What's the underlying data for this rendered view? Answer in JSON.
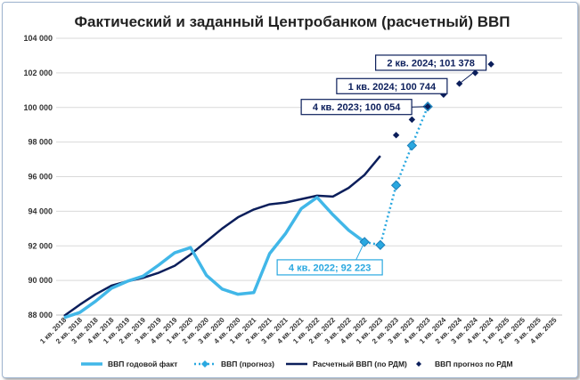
{
  "chart_data": {
    "type": "line",
    "title": "Фактический и заданный Центробанком (расчетный) ВВП",
    "xlabel": "",
    "ylabel": "",
    "ylim": [
      88000,
      104000
    ],
    "yticks": [
      "88 000",
      "90 000",
      "92 000",
      "94 000",
      "96 000",
      "98 000",
      "100 000",
      "102 000",
      "104 000"
    ],
    "grid": true,
    "legend_position": "bottom",
    "categories": [
      "1 кв. 2018",
      "2 кв. 2018",
      "3 кв. 2018",
      "4 кв. 2018",
      "1 кв. 2019",
      "2 кв. 2019",
      "3 кв. 2019",
      "4 кв. 2019",
      "1 кв. 2020",
      "2 кв. 2020",
      "3 кв. 2020",
      "4 кв. 2020",
      "1 кв. 2021",
      "2 кв. 2021",
      "3 кв. 2021",
      "4 кв. 2021",
      "1 кв. 2022",
      "2 кв. 2022",
      "3 кв. 2022",
      "4 кв. 2022",
      "1 кв. 2023",
      "2 кв. 2023",
      "3 кв. 2023",
      "4 кв. 2023",
      "1 кв. 2024",
      "2 кв. 2024",
      "3 кв. 2024",
      "4 кв. 2024",
      "1 кв. 2025",
      "2 кв. 2025",
      "3 кв. 2025",
      "4 кв. 2025"
    ],
    "series": [
      {
        "name": "ВВП годовой факт",
        "style": "solid-thick",
        "color": "#41b7e8",
        "values": [
          87850,
          88150,
          88800,
          89550,
          89950,
          90250,
          90900,
          91600,
          91900,
          90300,
          89500,
          89200,
          89300,
          91550,
          92700,
          94150,
          94800,
          93800,
          92900,
          92223,
          null,
          null,
          null,
          null,
          null,
          null,
          null,
          null,
          null,
          null,
          null,
          null
        ]
      },
      {
        "name": "ВВП (прогноз)",
        "style": "dotted-diamond",
        "color": "#2aa8e0",
        "values": [
          null,
          null,
          null,
          null,
          null,
          null,
          null,
          null,
          null,
          null,
          null,
          null,
          null,
          null,
          null,
          null,
          null,
          null,
          null,
          92223,
          92050,
          95500,
          97800,
          100054,
          null,
          null,
          null,
          null,
          null,
          null,
          null,
          null
        ]
      },
      {
        "name": "Расчетный ВВП (по РДМ)",
        "style": "solid",
        "color": "#0b1e5b",
        "values": [
          87950,
          88600,
          89200,
          89700,
          89950,
          90150,
          90450,
          90850,
          91500,
          92250,
          93000,
          93650,
          94100,
          94400,
          94500,
          94700,
          94900,
          94850,
          95350,
          96100,
          97200,
          null,
          null,
          null,
          null,
          null,
          null,
          null,
          null,
          null,
          null,
          null
        ]
      },
      {
        "name": "ВВП прогноз по РДМ",
        "style": "diamond-markers",
        "color": "#0b1e5b",
        "values": [
          null,
          null,
          null,
          null,
          null,
          null,
          null,
          null,
          null,
          null,
          null,
          null,
          null,
          null,
          null,
          null,
          null,
          null,
          null,
          null,
          null,
          98400,
          99300,
          100054,
          100744,
          101378,
          102000,
          102500,
          null,
          null,
          null,
          null
        ]
      }
    ],
    "annotations": [
      {
        "text": "2 кв. 2024;  101 378",
        "series": 3,
        "index": 25,
        "color": "#0b1e5b"
      },
      {
        "text": "1 кв. 2024;  100 744",
        "series": 3,
        "index": 24,
        "color": "#0b1e5b"
      },
      {
        "text": "4 кв. 2023;  100 054",
        "series": 3,
        "index": 23,
        "color": "#0b1e5b"
      },
      {
        "text": "4 кв. 2022;  92 223",
        "series": 0,
        "index": 19,
        "color": "#2aa8e0"
      }
    ]
  }
}
